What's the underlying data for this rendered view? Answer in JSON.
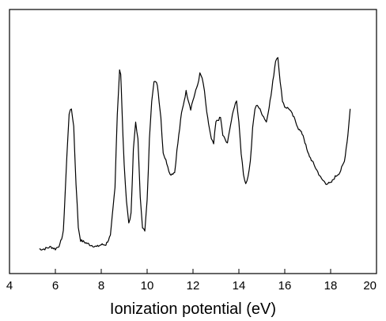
{
  "chart_data": {
    "type": "line",
    "title": "",
    "xlabel": "Ionization potential (eV)",
    "ylabel": "",
    "xlim": [
      4,
      20
    ],
    "ylim": [
      0,
      1
    ],
    "x_ticks": [
      4,
      6,
      8,
      10,
      12,
      14,
      16,
      18,
      20
    ],
    "x_tick_labels": [
      "4",
      "6",
      "8",
      "10",
      "12",
      "14",
      "16",
      "18",
      "20"
    ],
    "y_ticks": [],
    "grid": false,
    "legend": "none",
    "line_color": "#000000",
    "series": [
      {
        "x": [
          5.3,
          5.5,
          5.8,
          6.0,
          6.2,
          6.35,
          6.5,
          6.6,
          6.7,
          6.8,
          6.9,
          7.0,
          7.1,
          7.3,
          7.5,
          7.8,
          8.0,
          8.2,
          8.4,
          8.6,
          8.7,
          8.8,
          8.85,
          8.9,
          9.0,
          9.1,
          9.2,
          9.3,
          9.4,
          9.5,
          9.6,
          9.7,
          9.8,
          9.9,
          10.0,
          10.1,
          10.2,
          10.3,
          10.45,
          10.6,
          10.7,
          10.9,
          11.0,
          11.2,
          11.3,
          11.5,
          11.7,
          11.9,
          12.0,
          12.2,
          12.3,
          12.4,
          12.5,
          12.6,
          12.8,
          12.9,
          13.0,
          13.2,
          13.3,
          13.5,
          13.6,
          13.8,
          13.9,
          14.0,
          14.1,
          14.2,
          14.3,
          14.4,
          14.5,
          14.6,
          14.7,
          14.8,
          15.0,
          15.2,
          15.4,
          15.6,
          15.7,
          15.8,
          15.9,
          16.0,
          16.2,
          16.4,
          16.6,
          16.8,
          17.0,
          17.2,
          17.4,
          17.6,
          17.8,
          18.0,
          18.2,
          18.4,
          18.6,
          18.75,
          18.85
        ],
        "y": [
          0.0,
          0.0,
          0.01,
          0.0,
          0.02,
          0.08,
          0.42,
          0.62,
          0.64,
          0.56,
          0.3,
          0.1,
          0.04,
          0.03,
          0.02,
          0.01,
          0.02,
          0.02,
          0.06,
          0.28,
          0.62,
          0.82,
          0.8,
          0.65,
          0.38,
          0.22,
          0.12,
          0.16,
          0.45,
          0.58,
          0.5,
          0.24,
          0.1,
          0.08,
          0.22,
          0.5,
          0.68,
          0.77,
          0.75,
          0.6,
          0.44,
          0.38,
          0.34,
          0.35,
          0.45,
          0.62,
          0.72,
          0.64,
          0.68,
          0.75,
          0.8,
          0.78,
          0.72,
          0.62,
          0.5,
          0.48,
          0.58,
          0.6,
          0.52,
          0.48,
          0.55,
          0.65,
          0.68,
          0.58,
          0.44,
          0.34,
          0.3,
          0.33,
          0.4,
          0.55,
          0.64,
          0.66,
          0.62,
          0.58,
          0.7,
          0.86,
          0.88,
          0.76,
          0.68,
          0.65,
          0.64,
          0.6,
          0.55,
          0.52,
          0.44,
          0.4,
          0.36,
          0.32,
          0.3,
          0.3,
          0.33,
          0.35,
          0.4,
          0.52,
          0.64
        ]
      }
    ]
  }
}
